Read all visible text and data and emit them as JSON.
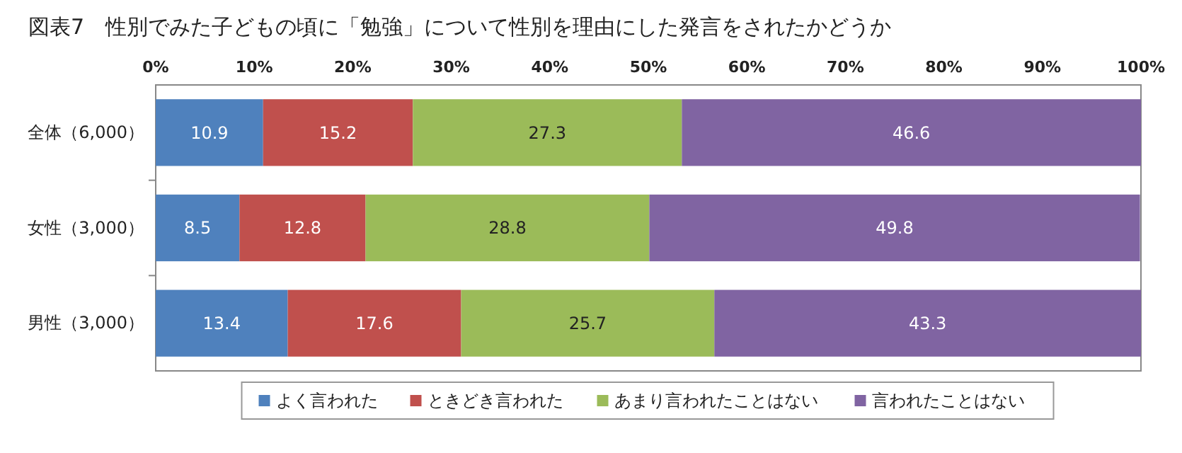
{
  "chart_data": {
    "type": "bar",
    "orientation": "horizontal",
    "stacked": true,
    "title": "図表7　性別でみた子どもの頃に「勉強」について性別を理由にした発言をされたかどうか",
    "categories": [
      "全体（6,000）",
      "女性（3,000）",
      "男性（3,000）"
    ],
    "series": [
      {
        "name": "よく言われた",
        "color": "#4f81bd",
        "values": [
          10.9,
          8.5,
          13.4
        ]
      },
      {
        "name": "ときどき言われた",
        "color": "#c0504d",
        "values": [
          15.2,
          12.8,
          17.6
        ]
      },
      {
        "name": "あまり言われたことはない",
        "color": "#9bbb59",
        "values": [
          27.3,
          28.8,
          25.7
        ]
      },
      {
        "name": "言われたことはない",
        "color": "#8064a2",
        "values": [
          46.6,
          49.8,
          43.3
        ]
      }
    ],
    "xlim": [
      0,
      100
    ],
    "xticks": [
      {
        "value": 0,
        "label": "0%"
      },
      {
        "value": 10,
        "label": "10%"
      },
      {
        "value": 20,
        "label": "20%"
      },
      {
        "value": 30,
        "label": "30%"
      },
      {
        "value": 40,
        "label": "40%"
      },
      {
        "value": 50,
        "label": "50%"
      },
      {
        "value": 60,
        "label": "60%"
      },
      {
        "value": 70,
        "label": "70%"
      },
      {
        "value": 80,
        "label": "80%"
      },
      {
        "value": 90,
        "label": "90%"
      },
      {
        "value": 100,
        "label": "100%"
      }
    ],
    "data_labels": true,
    "legend": "bottom"
  }
}
